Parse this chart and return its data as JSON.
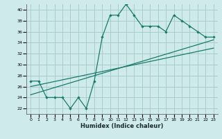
{
  "xlabel": "Humidex (Indice chaleur)",
  "bg_color": "#ceeaea",
  "grid_color": "#a8cccc",
  "line_color": "#1a7a6a",
  "xlim": [
    -0.5,
    23.5
  ],
  "ylim": [
    21,
    41
  ],
  "xticks": [
    0,
    1,
    2,
    3,
    4,
    5,
    6,
    7,
    8,
    9,
    10,
    11,
    12,
    13,
    14,
    15,
    16,
    17,
    18,
    19,
    20,
    21,
    22,
    23
  ],
  "yticks": [
    22,
    24,
    26,
    28,
    30,
    32,
    34,
    36,
    38,
    40
  ],
  "data_line": [
    [
      0,
      27
    ],
    [
      1,
      27
    ],
    [
      2,
      24
    ],
    [
      3,
      24
    ],
    [
      4,
      24
    ],
    [
      5,
      22
    ],
    [
      6,
      24
    ],
    [
      7,
      22
    ],
    [
      8,
      27
    ],
    [
      9,
      35
    ],
    [
      10,
      39
    ],
    [
      11,
      39
    ],
    [
      12,
      41
    ],
    [
      13,
      39
    ],
    [
      14,
      37
    ],
    [
      15,
      37
    ],
    [
      16,
      37
    ],
    [
      17,
      36
    ],
    [
      18,
      39
    ],
    [
      19,
      38
    ],
    [
      20,
      37
    ],
    [
      21,
      36
    ],
    [
      22,
      35
    ],
    [
      23,
      35
    ]
  ],
  "line1": [
    [
      0,
      24.5
    ],
    [
      23,
      34.5
    ]
  ],
  "line2": [
    [
      0,
      26.0
    ],
    [
      23,
      33.0
    ]
  ]
}
